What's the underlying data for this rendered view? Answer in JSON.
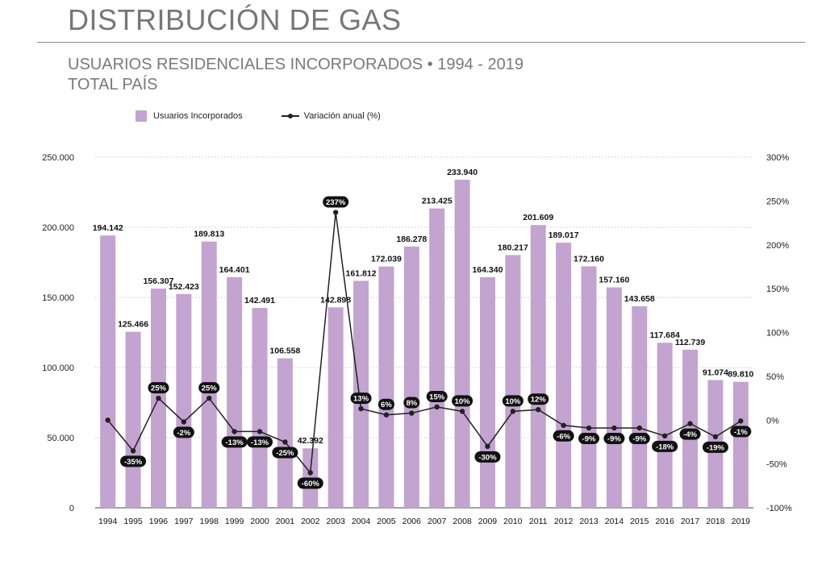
{
  "header": {
    "title": "DISTRIBUCIÓN DE GAS",
    "subtitle_line1": "USUARIOS RESIDENCIALES INCORPORADOS • 1994 - 2019",
    "subtitle_line2": "TOTAL PAÍS"
  },
  "colors": {
    "bar": "#c3a3cf",
    "line": "#222222",
    "label_bg": "#111111"
  },
  "chart_data": {
    "type": "bar",
    "categories": [
      "1994",
      "1995",
      "1996",
      "1997",
      "1998",
      "1999",
      "2000",
      "2001",
      "2002",
      "2003",
      "2004",
      "2005",
      "2006",
      "2007",
      "2008",
      "2009",
      "2010",
      "2011",
      "2012",
      "2013",
      "2014",
      "2015",
      "2016",
      "2017",
      "2018",
      "2019"
    ],
    "series": [
      {
        "name": "Usuarios Incorporados",
        "type": "bar",
        "axis": "left",
        "values": [
          194142,
          125466,
          156307,
          152423,
          189813,
          164401,
          142491,
          106558,
          42392,
          142898,
          161812,
          172039,
          186278,
          213425,
          233940,
          164340,
          180217,
          201609,
          189017,
          172160,
          157160,
          143658,
          117684,
          112739,
          91074,
          89810
        ],
        "labels": [
          "194.142",
          "125.466",
          "156.307",
          "152.423",
          "189.813",
          "164.401",
          "142.491",
          "106.558",
          "42.392",
          "142.898",
          "161.812",
          "172.039",
          "186.278",
          "213.425",
          "233.940",
          "164.340",
          "180.217",
          "201.609",
          "189.017",
          "172.160",
          "157.160",
          "143.658",
          "117.684",
          "112.739",
          "91.074",
          "89.810"
        ]
      },
      {
        "name": "Variación anual (%)",
        "type": "line",
        "axis": "right",
        "values": [
          0,
          -35,
          25,
          -2,
          25,
          -13,
          -13,
          -25,
          -60,
          237,
          13,
          6,
          8,
          15,
          10,
          -30,
          10,
          12,
          -6,
          -9,
          -9,
          -9,
          -18,
          -4,
          -19,
          -1
        ],
        "labels": [
          "",
          "-35%",
          "25%",
          "-2%",
          "25%",
          "-13%",
          "-13%",
          "-25%",
          "-60%",
          "237%",
          "13%",
          "6%",
          "8%",
          "15%",
          "10%",
          "-30%",
          "10%",
          "12%",
          "-6%",
          "-9%",
          "-9%",
          "-9%",
          "-18%",
          "-4%",
          "-19%",
          "-1%"
        ],
        "label_position": [
          "",
          "below",
          "above",
          "below",
          "above",
          "below",
          "below",
          "below",
          "below",
          "above",
          "above",
          "above",
          "above",
          "above",
          "above",
          "below",
          "above",
          "above",
          "below",
          "below",
          "below",
          "below",
          "below",
          "below",
          "below",
          "below"
        ]
      }
    ],
    "y_left": {
      "min": 0,
      "max": 250000,
      "ticks": [
        0,
        50000,
        100000,
        150000,
        200000,
        250000
      ],
      "tick_labels": [
        "0",
        "50.000",
        "100.000",
        "150.000",
        "200.000",
        "250.000"
      ]
    },
    "y_right": {
      "min": -100,
      "max": 300,
      "ticks": [
        -100,
        -50,
        0,
        50,
        100,
        150,
        200,
        250,
        300
      ],
      "tick_labels": [
        "-100%",
        "-50%",
        "0%",
        "50%",
        "100%",
        "150%",
        "200%",
        "250%",
        "300%"
      ]
    },
    "grid": "horizontal-dotted",
    "legend": "top-left"
  }
}
